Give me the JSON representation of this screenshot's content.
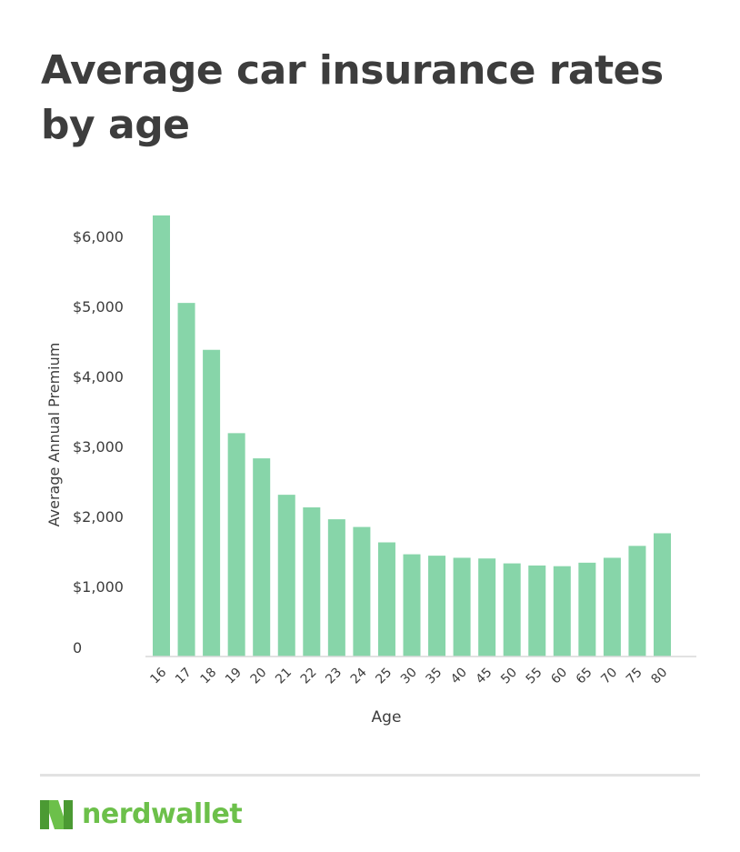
{
  "title": "Average car insurance rates by age",
  "brand": {
    "name": "nerdwallet",
    "color": "#6cc04a",
    "mark_icon": "nerdwallet-n-logo-icon"
  },
  "colors": {
    "bar": "#87d5a9",
    "axis_text": "#3d3d3d",
    "baseline": "#d9d9d9"
  },
  "chart_data": {
    "type": "bar",
    "title": "Average car insurance rates by age",
    "xlabel": "Age",
    "ylabel": "Average Annual Premium",
    "categories": [
      "16",
      "17",
      "18",
      "19",
      "20",
      "21",
      "22",
      "23",
      "24",
      "25",
      "30",
      "35",
      "40",
      "45",
      "50",
      "55",
      "60",
      "65",
      "70",
      "75",
      "80"
    ],
    "values": [
      6300,
      5050,
      4380,
      3190,
      2830,
      2310,
      2130,
      1960,
      1850,
      1630,
      1460,
      1440,
      1410,
      1400,
      1330,
      1300,
      1290,
      1340,
      1410,
      1580,
      1760
    ],
    "yticks": [
      0,
      1000,
      2000,
      3000,
      4000,
      5000,
      6000
    ],
    "ytick_labels": [
      "0",
      "$1,000",
      "$2,000",
      "$3,000",
      "$4,000",
      "$5,000",
      "$6,000"
    ],
    "ylim": [
      0,
      6000
    ],
    "grid": false,
    "legend": "none"
  }
}
